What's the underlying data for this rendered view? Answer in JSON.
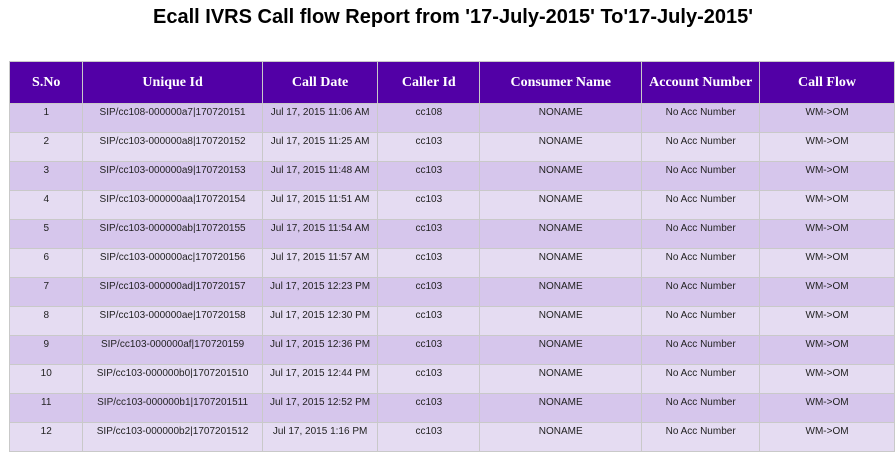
{
  "report": {
    "title": "Ecall IVRS Call flow Report from '17-July-2015' To'17-July-2015'",
    "columns": [
      "S.No",
      "Unique Id",
      "Call Date",
      "Caller Id",
      "Consumer Name",
      "Account Number",
      "Call Flow"
    ],
    "rows": [
      [
        "1",
        "SIP/cc108-000000a7|170720151",
        "Jul 17, 2015 11:06 AM",
        "cc108",
        "NONAME",
        "No Acc Number",
        "WM->OM"
      ],
      [
        "2",
        "SIP/cc103-000000a8|170720152",
        "Jul 17, 2015 11:25 AM",
        "cc103",
        "NONAME",
        "No Acc Number",
        "WM->OM"
      ],
      [
        "3",
        "SIP/cc103-000000a9|170720153",
        "Jul 17, 2015 11:48 AM",
        "cc103",
        "NONAME",
        "No Acc Number",
        "WM->OM"
      ],
      [
        "4",
        "SIP/cc103-000000aa|170720154",
        "Jul 17, 2015 11:51 AM",
        "cc103",
        "NONAME",
        "No Acc Number",
        "WM->OM"
      ],
      [
        "5",
        "SIP/cc103-000000ab|170720155",
        "Jul 17, 2015 11:54 AM",
        "cc103",
        "NONAME",
        "No Acc Number",
        "WM->OM"
      ],
      [
        "6",
        "SIP/cc103-000000ac|170720156",
        "Jul 17, 2015 11:57 AM",
        "cc103",
        "NONAME",
        "No Acc Number",
        "WM->OM"
      ],
      [
        "7",
        "SIP/cc103-000000ad|170720157",
        "Jul 17, 2015 12:23 PM",
        "cc103",
        "NONAME",
        "No Acc Number",
        "WM->OM"
      ],
      [
        "8",
        "SIP/cc103-000000ae|170720158",
        "Jul 17, 2015 12:30 PM",
        "cc103",
        "NONAME",
        "No Acc Number",
        "WM->OM"
      ],
      [
        "9",
        "SIP/cc103-000000af|170720159",
        "Jul 17, 2015 12:36 PM",
        "cc103",
        "NONAME",
        "No Acc Number",
        "WM->OM"
      ],
      [
        "10",
        "SIP/cc103-000000b0|1707201510",
        "Jul 17, 2015 12:44 PM",
        "cc103",
        "NONAME",
        "No Acc Number",
        "WM->OM"
      ],
      [
        "11",
        "SIP/cc103-000000b1|1707201511",
        "Jul 17, 2015 12:52 PM",
        "cc103",
        "NONAME",
        "No Acc Number",
        "WM->OM"
      ],
      [
        "12",
        "SIP/cc103-000000b2|1707201512",
        "Jul 17, 2015 1:16 PM",
        "cc103",
        "NONAME",
        "No Acc Number",
        "WM->OM"
      ]
    ]
  },
  "colors": {
    "header_bg": "#5200a6",
    "header_text": "#ffffff",
    "row_odd_bg": "#d6c6ec",
    "row_even_bg": "#e5dcf2"
  }
}
